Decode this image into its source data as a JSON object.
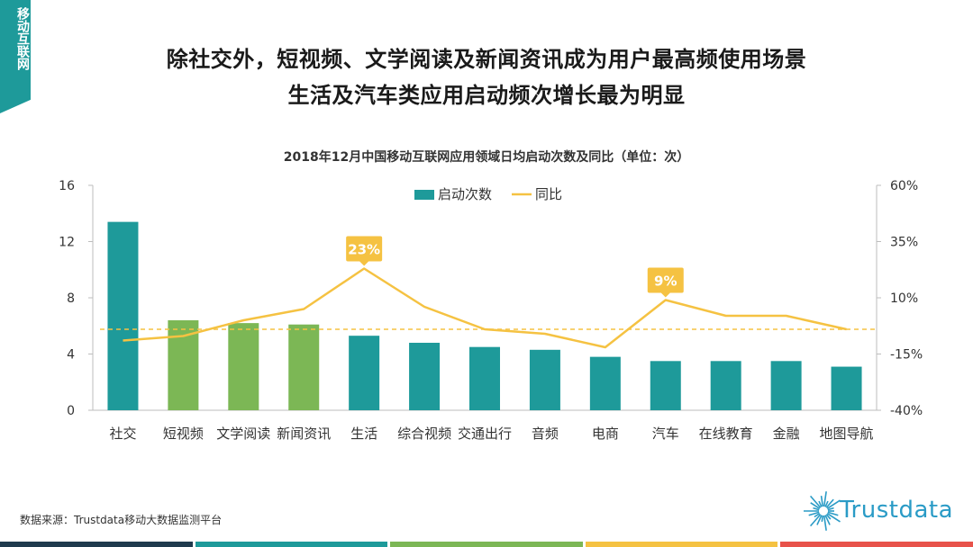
{
  "corner_tag": "移动互联网",
  "headline": {
    "line1": "除社交外，短视频、文学阅读及新闻资讯成为用户最高频使用场景",
    "line2": "生活及汽车类应用启动频次增长最为明显"
  },
  "chart_title": "2018年12月中国移动互联网应用领域日均启动次数及同比（单位：次）",
  "source": "数据来源：Trustdata移动大数据监测平台",
  "logo": "Trustdata",
  "colors": {
    "teal": "#1e9a9a",
    "green": "#7cb755",
    "line": "#f5c242",
    "footer": [
      "#1f3a4d",
      "#1e9a9a",
      "#7cb755",
      "#f5c242",
      "#e8524a"
    ]
  },
  "chart_data": {
    "type": "bar",
    "categories": [
      "社交",
      "短视频",
      "文学阅读",
      "新闻资讯",
      "生活",
      "综合视频",
      "交通出行",
      "音频",
      "电商",
      "汽车",
      "在线教育",
      "金融",
      "地图导航"
    ],
    "series": [
      {
        "name": "启动次数",
        "type": "bar",
        "axis": "left",
        "values": [
          13.4,
          6.4,
          6.2,
          6.1,
          5.3,
          4.8,
          4.5,
          4.3,
          3.8,
          3.5,
          3.5,
          3.5,
          3.1
        ],
        "highlight": [
          false,
          true,
          true,
          true,
          false,
          false,
          false,
          false,
          false,
          false,
          false,
          false,
          false
        ]
      },
      {
        "name": "同比",
        "type": "line",
        "axis": "right",
        "values": [
          -9,
          -7,
          0,
          5,
          23,
          6,
          -4,
          -6,
          -12,
          9,
          2,
          2,
          -4
        ]
      }
    ],
    "annotations": [
      {
        "category": "生活",
        "label": "23%"
      },
      {
        "category": "汽车",
        "label": "9%"
      }
    ],
    "left_axis": {
      "min": 0,
      "max": 16,
      "ticks": [
        "0",
        "4",
        "8",
        "12",
        "16"
      ]
    },
    "right_axis": {
      "min": -40,
      "max": 60,
      "ticks": [
        "-40%",
        "-15%",
        "10%",
        "35%",
        "60%"
      ]
    },
    "reference_line": {
      "axis": "right",
      "value": -4
    },
    "legend": {
      "position": "top",
      "items": [
        "启动次数",
        "同比"
      ]
    }
  }
}
